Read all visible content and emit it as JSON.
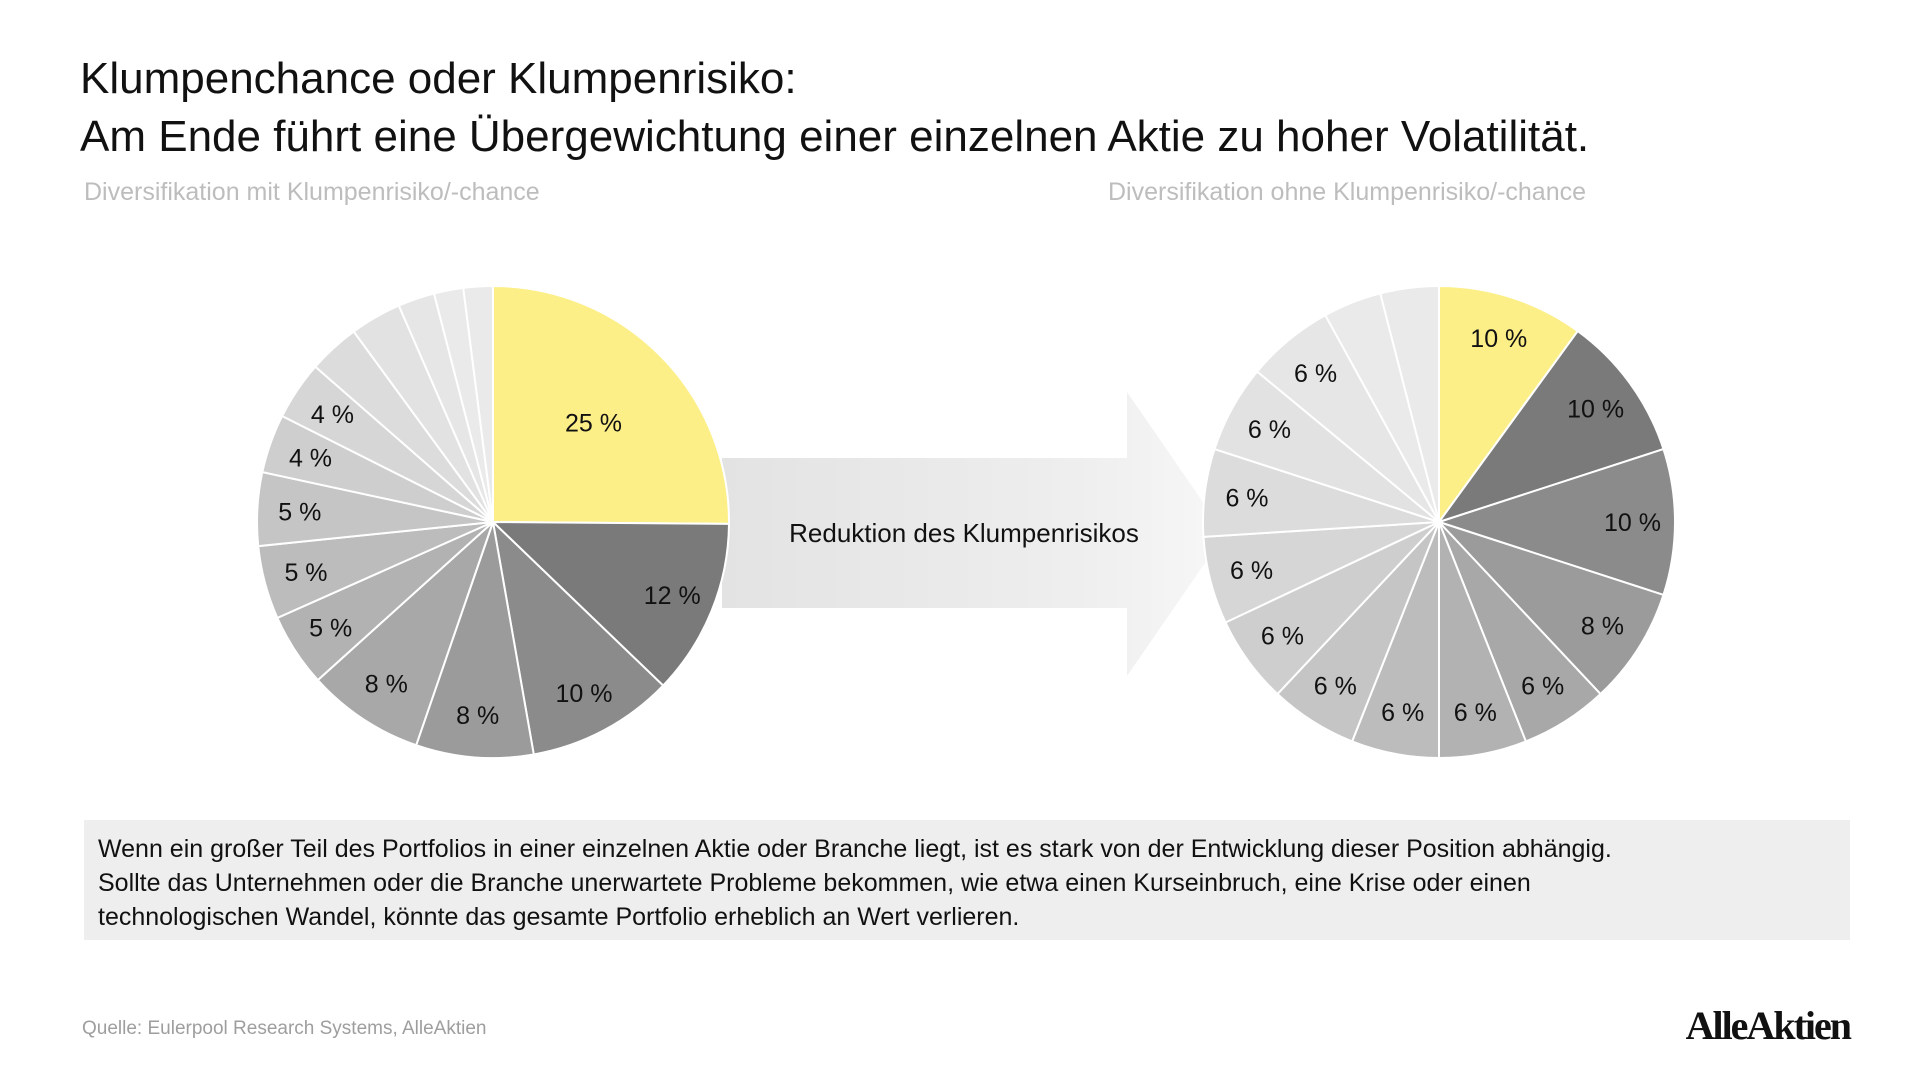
{
  "title": {
    "line1": "Klumpenchance oder Klumpenrisiko:",
    "line2": "Am Ende führt eine Übergewichtung einer einzelnen Aktie zu hoher Volatilität."
  },
  "colors": {
    "highlight": "#fcef88",
    "slice_shades": [
      "#fcef88",
      "#7a7a7a",
      "#8b8b8b",
      "#9b9b9b",
      "#a8a8a8",
      "#b2b2b2",
      "#bcbcbc",
      "#c5c5c5",
      "#cecece",
      "#d6d6d6",
      "#dcdcdc",
      "#e2e2e2",
      "#e6e6e6",
      "#eaeaea"
    ],
    "arrow": "#e6e6e6",
    "note_background": "#eeeeee"
  },
  "chart_data": [
    {
      "type": "pie",
      "title": "Diversifikation mit Klumpenrisiko/-chance",
      "start": "12 o'clock, clockwise",
      "values": [
        25,
        12,
        10,
        8,
        8,
        5,
        5,
        5,
        4,
        4,
        3.5,
        3.5,
        2.5,
        2,
        2
      ],
      "labels": [
        "25 %",
        "12 %",
        "10 %",
        "8 %",
        "8 %",
        "5 %",
        "5 %",
        "5 %",
        "4 %",
        "4 %",
        "",
        "",
        "",
        "",
        ""
      ],
      "highlight_index": 0
    },
    {
      "type": "pie",
      "title": "Diversifikation ohne Klumpenrisiko/-chance",
      "start": "12 o'clock, clockwise",
      "values": [
        10,
        10,
        10,
        8,
        6,
        6,
        6,
        6,
        6,
        6,
        6,
        6,
        6,
        4,
        4
      ],
      "labels": [
        "10 %",
        "10 %",
        "10 %",
        "8 %",
        "6 %",
        "6 %",
        "6 %",
        "6 %",
        "6 %",
        "6 %",
        "6 %",
        "6 %",
        "6 %",
        "",
        ""
      ],
      "highlight_index": 0
    }
  ],
  "arrow": {
    "label": "Reduktion des Klumpenrisikos"
  },
  "note": {
    "line1": "Wenn ein großer Teil des Portfolios in einer einzelnen Aktie oder Branche liegt, ist es stark von der Entwicklung dieser Position abhängig.",
    "line2": "Sollte das Unternehmen oder die Branche unerwartete Probleme bekommen, wie etwa einen Kurseinbruch, eine Krise oder einen",
    "line3": "technologischen Wandel, könnte das gesamte Portfolio erheblich an Wert verlieren."
  },
  "source": "Quelle: Eulerpool Research Systems, AlleAktien",
  "logo": "AlleAktien"
}
